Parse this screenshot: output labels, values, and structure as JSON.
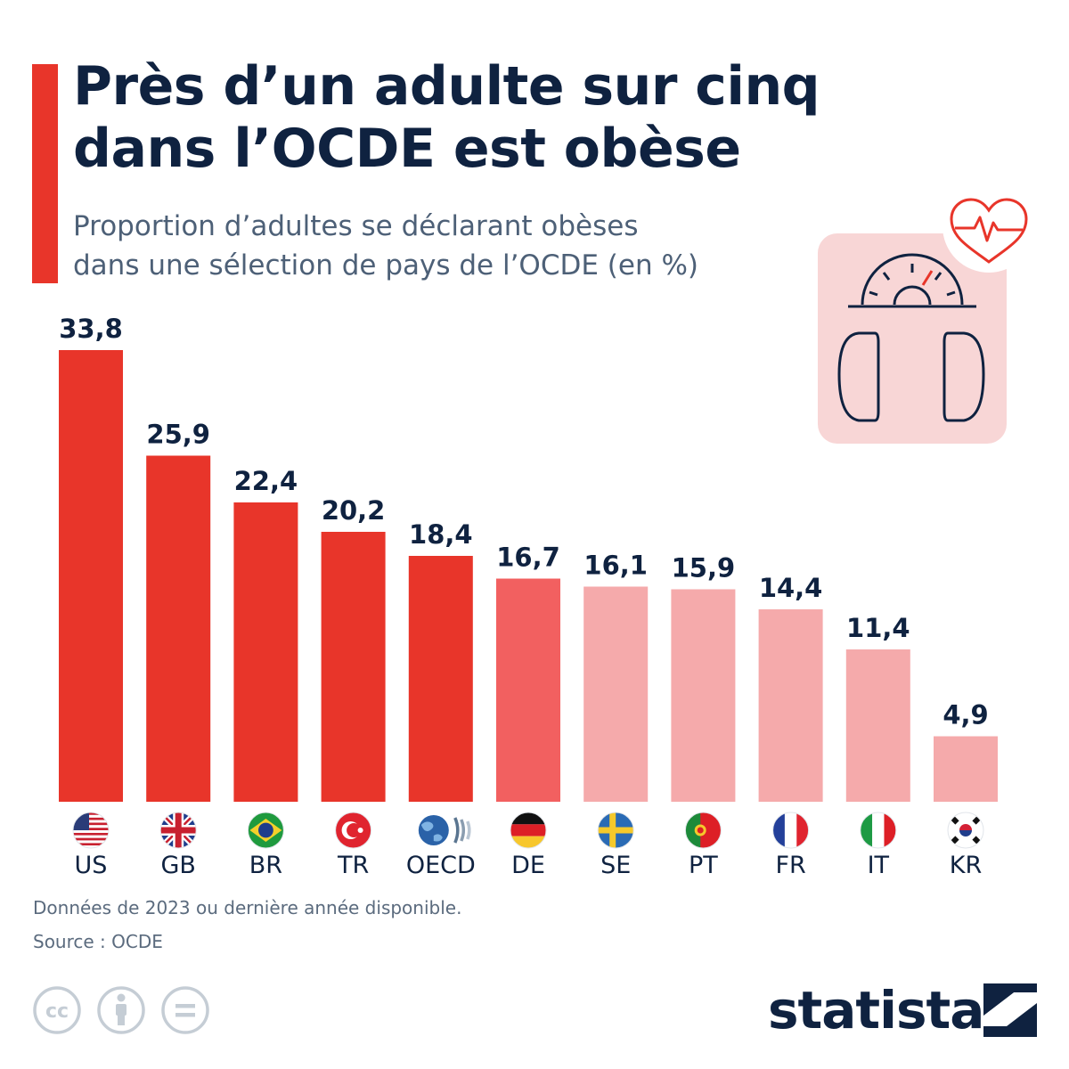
{
  "header": {
    "title_lines": [
      "Près d’un adulte sur cinq",
      "dans l’OCDE est obèse"
    ],
    "subtitle_lines": [
      "Proportion d’adultes se déclarant obèses",
      "dans une sélection de pays de l’OCDE (en %)"
    ]
  },
  "chart_data": {
    "type": "bar",
    "categories": [
      "US",
      "GB",
      "BR",
      "TR",
      "OECD",
      "DE",
      "SE",
      "PT",
      "FR",
      "IT",
      "KR"
    ],
    "values": [
      33.8,
      25.9,
      22.4,
      20.2,
      18.4,
      16.7,
      16.1,
      15.9,
      14.4,
      11.4,
      4.9
    ],
    "value_labels": [
      "33,8",
      "25,9",
      "22,4",
      "20,2",
      "18,4",
      "16,7",
      "16,1",
      "15,9",
      "14,4",
      "11,4",
      "4,9"
    ],
    "bar_colors": [
      "#e8352a",
      "#e8352a",
      "#e8352a",
      "#e8352a",
      "#e8352a",
      "#f26060",
      "#f5aaab",
      "#f5aaab",
      "#f5aaab",
      "#f5aaab",
      "#f5aaab"
    ],
    "flags": [
      "us-flag-icon",
      "gb-flag-icon",
      "br-flag-icon",
      "tr-flag-icon",
      "oecd-logo-icon",
      "de-flag-icon",
      "se-flag-icon",
      "pt-flag-icon",
      "fr-flag-icon",
      "it-flag-icon",
      "kr-flag-icon"
    ],
    "ylim": [
      0,
      33.8
    ],
    "grid": false,
    "legend": "none"
  },
  "footer": {
    "note": "Données de 2023 ou dernière année disponible.",
    "source": "Source : OCDE",
    "license_icons": [
      "creative-commons-icon",
      "attribution-icon",
      "no-derivatives-icon"
    ],
    "brand": "statista"
  },
  "colors": {
    "accent": "#e8352a",
    "title": "#0f2240",
    "subtitle": "#4d6077",
    "illustration_bg": "#f8d6d6"
  }
}
